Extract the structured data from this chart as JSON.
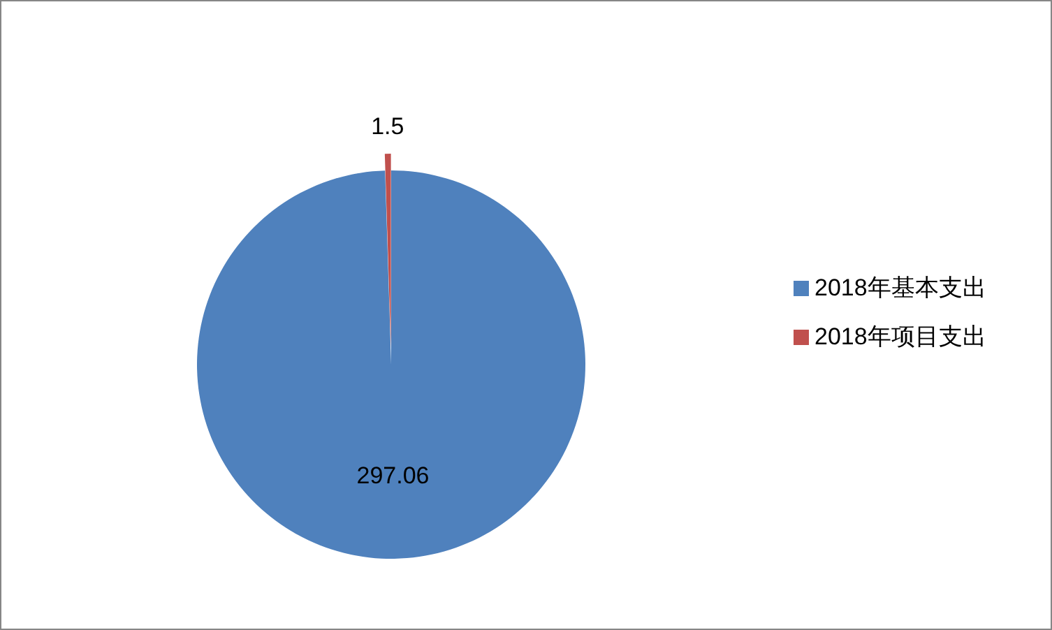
{
  "chart_data": {
    "type": "pie",
    "categories": [
      "2018年基本支出",
      "2018年项目支出"
    ],
    "values": [
      297.06,
      1.5
    ],
    "colors": [
      "#4f81bd",
      "#c0504d"
    ],
    "data_labels": true,
    "legend": "right"
  }
}
